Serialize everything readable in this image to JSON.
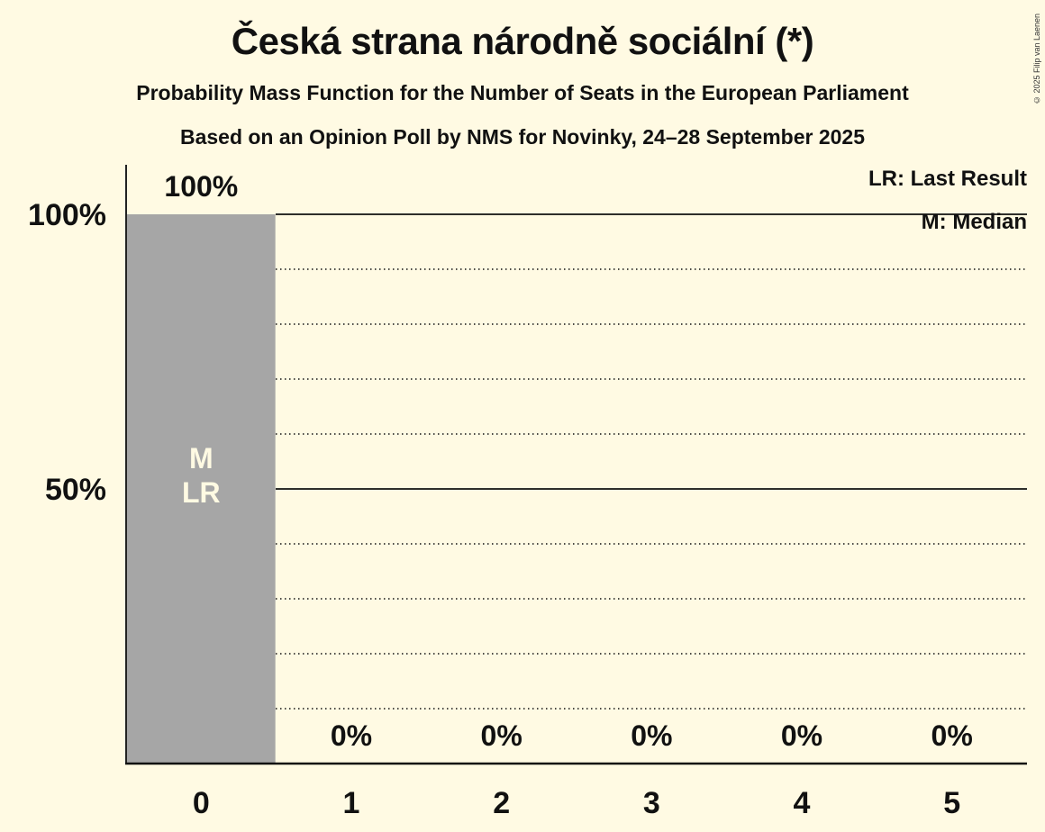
{
  "header": {
    "title": "Česká strana národně sociální (*)",
    "subtitle": "Probability Mass Function for the Number of Seats in the European Parliament",
    "subtitle2": "Based on an Opinion Poll by NMS for Novinky, 24–28 September 2025",
    "copyright": "© 2025 Filip van Laenen"
  },
  "legend": {
    "last_result": "LR: Last Result",
    "median": "M: Median"
  },
  "colors": {
    "background": "#fffae3",
    "bar": "#a6a6a6",
    "bar_label": "#fffae3",
    "text": "#111111"
  },
  "chart_data": {
    "type": "bar",
    "title": "Česká strana národně sociální (*)",
    "subtitle": "Probability Mass Function for the Number of Seats in the European Parliament",
    "categories": [
      "0",
      "1",
      "2",
      "3",
      "4",
      "5"
    ],
    "values": [
      100,
      0,
      0,
      0,
      0,
      0
    ],
    "value_labels": [
      "100%",
      "0%",
      "0%",
      "0%",
      "0%",
      "0%"
    ],
    "xlabel": "",
    "ylabel": "",
    "ylim": [
      0,
      100
    ],
    "yticks": [
      {
        "value": 50,
        "label": "50%"
      },
      {
        "value": 100,
        "label": "100%"
      }
    ],
    "grid": {
      "major": [
        50,
        100
      ],
      "minor_dotted": [
        10,
        20,
        30,
        40,
        60,
        70,
        80,
        90
      ]
    },
    "annotations": [
      {
        "category": "0",
        "lines": [
          "M",
          "LR"
        ],
        "meaning": "Median and Last Result"
      }
    ],
    "legend": [
      "LR: Last Result",
      "M: Median"
    ],
    "legend_position": "top-right"
  }
}
